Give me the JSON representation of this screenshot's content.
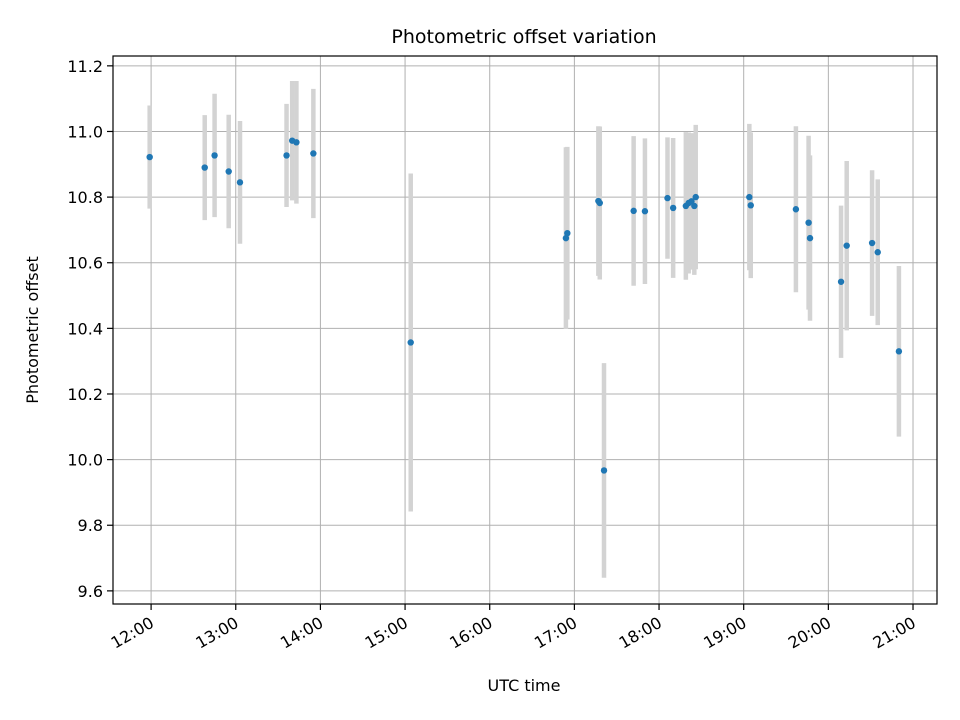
{
  "chart_data": {
    "type": "scatter",
    "title": "Photometric offset variation",
    "xlabel": "UTC time",
    "ylabel": "Photometric offset",
    "x_ticks": [
      "12:00",
      "13:00",
      "14:00",
      "15:00",
      "16:00",
      "17:00",
      "18:00",
      "19:00",
      "20:00",
      "21:00"
    ],
    "y_ticks": [
      "9.6",
      "9.8",
      "10.0",
      "10.2",
      "10.4",
      "10.6",
      "10.8",
      "11.0",
      "11.2"
    ],
    "xlim": [
      "11:33",
      "21:17"
    ],
    "ylim": [
      9.56,
      11.23
    ],
    "grid": true,
    "point_color": "#1f77b4",
    "errorbar_color": "#d3d3d3",
    "points": [
      {
        "t": "11:59",
        "y": 10.922,
        "err": 0.157
      },
      {
        "t": "12:38",
        "y": 10.89,
        "err": 0.16
      },
      {
        "t": "12:45",
        "y": 10.927,
        "err": 0.188
      },
      {
        "t": "12:55",
        "y": 10.878,
        "err": 0.173
      },
      {
        "t": "13:03",
        "y": 10.845,
        "err": 0.187
      },
      {
        "t": "13:36",
        "y": 10.927,
        "err": 0.157
      },
      {
        "t": "13:40",
        "y": 10.972,
        "err": 0.182
      },
      {
        "t": "13:43",
        "y": 10.967,
        "err": 0.187
      },
      {
        "t": "13:55",
        "y": 10.933,
        "err": 0.197
      },
      {
        "t": "15:04",
        "y": 10.357,
        "err": 0.515
      },
      {
        "t": "16:54",
        "y": 10.675,
        "err": 0.277
      },
      {
        "t": "16:55",
        "y": 10.69,
        "err": 0.263
      },
      {
        "t": "17:17",
        "y": 10.788,
        "err": 0.228
      },
      {
        "t": "17:18",
        "y": 10.782,
        "err": 0.233
      },
      {
        "t": "17:21",
        "y": 9.967,
        "err": 0.327
      },
      {
        "t": "17:42",
        "y": 10.758,
        "err": 0.228
      },
      {
        "t": "17:50",
        "y": 10.757,
        "err": 0.222
      },
      {
        "t": "18:06",
        "y": 10.797,
        "err": 0.185
      },
      {
        "t": "18:10",
        "y": 10.767,
        "err": 0.213
      },
      {
        "t": "18:19",
        "y": 10.773,
        "err": 0.225
      },
      {
        "t": "18:21",
        "y": 10.782,
        "err": 0.215
      },
      {
        "t": "18:23",
        "y": 10.787,
        "err": 0.208
      },
      {
        "t": "18:25",
        "y": 10.773,
        "err": 0.21
      },
      {
        "t": "18:26",
        "y": 10.8,
        "err": 0.22
      },
      {
        "t": "19:04",
        "y": 10.8,
        "err": 0.223
      },
      {
        "t": "19:05",
        "y": 10.775,
        "err": 0.222
      },
      {
        "t": "19:37",
        "y": 10.763,
        "err": 0.253
      },
      {
        "t": "19:46",
        "y": 10.722,
        "err": 0.265
      },
      {
        "t": "19:47",
        "y": 10.675,
        "err": 0.252
      },
      {
        "t": "20:09",
        "y": 10.542,
        "err": 0.232
      },
      {
        "t": "20:13",
        "y": 10.652,
        "err": 0.258
      },
      {
        "t": "20:31",
        "y": 10.66,
        "err": 0.222
      },
      {
        "t": "20:35",
        "y": 10.632,
        "err": 0.222
      },
      {
        "t": "20:50",
        "y": 10.33,
        "err": 0.26
      }
    ]
  }
}
